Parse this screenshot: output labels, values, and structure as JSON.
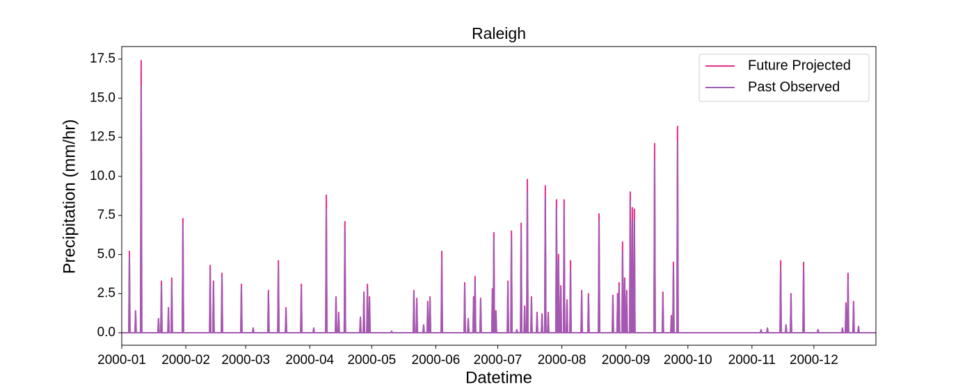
{
  "chart_data": {
    "type": "line",
    "title": "Raleigh",
    "x_label": "Datetime",
    "y_label": "Precipitation (mm/hr)",
    "xlim": [
      0,
      365
    ],
    "xticks": [
      {
        "value": 0,
        "label": "2000-01"
      },
      {
        "value": 31,
        "label": "2000-02"
      },
      {
        "value": 60,
        "label": "2000-03"
      },
      {
        "value": 91,
        "label": "2000-04"
      },
      {
        "value": 121,
        "label": "2000-05"
      },
      {
        "value": 152,
        "label": "2000-06"
      },
      {
        "value": 182,
        "label": "2000-07"
      },
      {
        "value": 213,
        "label": "2000-08"
      },
      {
        "value": 244,
        "label": "2000-09"
      },
      {
        "value": 274,
        "label": "2000-10"
      },
      {
        "value": 305,
        "label": "2000-11"
      },
      {
        "value": 335,
        "label": "2000-12"
      }
    ],
    "ylim": [
      -0.8,
      18.3
    ],
    "yticks": [
      {
        "value": 0,
        "label": "0.0"
      },
      2.5,
      {
        "value": 5,
        "label": "5.0"
      },
      {
        "value": 7.5,
        "label": "7.5"
      },
      {
        "value": 10,
        "label": "10.0"
      },
      12.5,
      {
        "value": 15,
        "label": "15.0"
      },
      17.5
    ],
    "legend": "upper right",
    "x": [
      0,
      3.4,
      3.7,
      4.0,
      6.4,
      6.7,
      7.0,
      9.1,
      9.4,
      9.7,
      17.5,
      17.8,
      18.1,
      18.9,
      19.2,
      19.5,
      22.3,
      22.6,
      22.9,
      23.9,
      24.2,
      24.5,
      29.3,
      29.6,
      29.9,
      42.5,
      42.8,
      43.1,
      44.1,
      44.4,
      44.7,
      48.2,
      48.5,
      48.8,
      57.6,
      57.9,
      58.2,
      63.3,
      63.6,
      63.9,
      70.7,
      71,
      71.3,
      75.5,
      75.8,
      76.1,
      79.2,
      79.5,
      79.8,
      86.6,
      86.9,
      87.2,
      92.6,
      92.9,
      93.2,
      98.7,
      99,
      99.3,
      103.4,
      103.7,
      104,
      104.7,
      105,
      105.3,
      107.7,
      108,
      108.3,
      115.2,
      115.5,
      115.8,
      116.9,
      117.2,
      117.5,
      118.6,
      118.9,
      119.2,
      119.6,
      119.9,
      120.2,
      130.3,
      130.6,
      130.9,
      141.1,
      141.4,
      141.7,
      142.5,
      142.8,
      143.1,
      145.8,
      146.1,
      146.4,
      147.8,
      148.1,
      148.4,
      148.9,
      149.2,
      149.5,
      154.6,
      154.9,
      155.2,
      165.7,
      166,
      166.3,
      167.4,
      167.7,
      168,
      170,
      170.3,
      170.6,
      170.7,
      171,
      171.3,
      173.4,
      173.7,
      174,
      179.1,
      179.4,
      179.7,
      179.8,
      180.1,
      180.4,
      180.8,
      181.1,
      181.4,
      186.6,
      186.9,
      187.2,
      188.3,
      188.6,
      188.9,
      190.9,
      191.2,
      191.5,
      193,
      193.3,
      193.6,
      194.7,
      195,
      195.3,
      196,
      196.3,
      196.6,
      198,
      198.3,
      198.6,
      200.7,
      201,
      201.3,
      203.1,
      203.4,
      203.7,
      204.7,
      205,
      205.3,
      206.1,
      206.4,
      206.7,
      210.1,
      210.4,
      210.7,
      211.1,
      211.4,
      211.7,
      212.2,
      212.5,
      212.8,
      213.8,
      214.1,
      214.4,
      215.2,
      215.5,
      215.8,
      216.9,
      217.2,
      217.5,
      222.3,
      222.6,
      222.9,
      225.6,
      225.9,
      226.2,
      230.7,
      231,
      231.3,
      237.4,
      237.7,
      238,
      239.7,
      240,
      240.3,
      240.4,
      240.7,
      241,
      242.1,
      242.4,
      242.7,
      243.1,
      243.4,
      243.7,
      244.1,
      244.4,
      244.7,
      245.8,
      246.1,
      246.4,
      246.8,
      247.1,
      247.4,
      247.8,
      248.1,
      248.4,
      257.6,
      257.9,
      258.2,
      261.6,
      261.9,
      262.2,
      265.7,
      266,
      266.3,
      266.7,
      267,
      267.3,
      268.7,
      269,
      269.3,
      309.1,
      309.4,
      309.7,
      312.2,
      312.5,
      312.8,
      318.6,
      318.9,
      319.2,
      321.2,
      321.5,
      321.8,
      323.6,
      323.9,
      324.2,
      329.7,
      330,
      330.3,
      336.7,
      337,
      337.3,
      348.5,
      348.8,
      349.1,
      350.2,
      350.5,
      350.8,
      351.2,
      351.5,
      351.8,
      353.9,
      354.2,
      354.5,
      356.3,
      356.6,
      356.9,
      365
    ],
    "series": [
      {
        "name": "Future Projected",
        "color": "#e7298a",
        "values": [
          0,
          0,
          5.2,
          0,
          0,
          1.4,
          0,
          0,
          17.4,
          0,
          0,
          0.9,
          0,
          0,
          3.3,
          0,
          0,
          1.6,
          0,
          0,
          3.5,
          0,
          0,
          7.3,
          0,
          0,
          4.3,
          0,
          0,
          3.3,
          0,
          0,
          3.8,
          0,
          0,
          3.1,
          0,
          0,
          0.3,
          0,
          0,
          2.7,
          0,
          0,
          4.6,
          0,
          0,
          1.6,
          0,
          0,
          3.1,
          0,
          0,
          0.3,
          0,
          0,
          8.8,
          0,
          0,
          2.3,
          0,
          0,
          1.3,
          0,
          0,
          7.1,
          0,
          0,
          1.0,
          0,
          0,
          2.6,
          0,
          0,
          3.1,
          0,
          0,
          2.3,
          0,
          0,
          0.1,
          0,
          0,
          2.7,
          0,
          0,
          2.2,
          0,
          0,
          0.5,
          0,
          0,
          2.0,
          0,
          0,
          2.3,
          0,
          0,
          5.2,
          0,
          0,
          3.2,
          0,
          0,
          0.9,
          0,
          0,
          2.3,
          0,
          0,
          3.6,
          0,
          0,
          2.2,
          0,
          0,
          2.8,
          0,
          0,
          6.4,
          0,
          0,
          1.4,
          0,
          0,
          3.3,
          0,
          0,
          6.5,
          0,
          0,
          0.2,
          0,
          0,
          7.0,
          0,
          0,
          1.7,
          0,
          0,
          9.8,
          0,
          0,
          2.3,
          0,
          0,
          1.3,
          0,
          0,
          1.2,
          0,
          0,
          9.4,
          0,
          0,
          1.3,
          0,
          0,
          8.5,
          0,
          0,
          5.0,
          0,
          0,
          3.0,
          0,
          0,
          8.5,
          0,
          0,
          2.1,
          0,
          0,
          4.6,
          0,
          0,
          2.7,
          0,
          0,
          2.5,
          0,
          0,
          7.6,
          0,
          0,
          2.4,
          0,
          0,
          2.5,
          0,
          0,
          3.2,
          0,
          0,
          5.8,
          0,
          0,
          3.5,
          0,
          0,
          2.7,
          0,
          0,
          9.0,
          0,
          0,
          8.0,
          0,
          0,
          7.9,
          0,
          0,
          12.1,
          0,
          0,
          2.6,
          0,
          0,
          1.1,
          0,
          0,
          4.5,
          0,
          0,
          13.2,
          0,
          0,
          0.2,
          0,
          0,
          0.3,
          0,
          0,
          4.6,
          0,
          0,
          0.5,
          0,
          0,
          2.5,
          0,
          0,
          4.5,
          0,
          0,
          0.2,
          0,
          0,
          0.3,
          0,
          0,
          1.9,
          0,
          0,
          3.8,
          0,
          0,
          2.0,
          0,
          0,
          0.4,
          0,
          0
        ]
      },
      {
        "name": "Past Observed",
        "color": "#9b5db5",
        "values": [
          0,
          0,
          4.8,
          0,
          0,
          1.4,
          0,
          0,
          15.8,
          0,
          0,
          0.9,
          0,
          0,
          3.0,
          0,
          0,
          1.6,
          0,
          0,
          3.2,
          0,
          0,
          6.9,
          0,
          0,
          4.0,
          0,
          0,
          3.1,
          0,
          0,
          3.6,
          0,
          0,
          2.9,
          0,
          0,
          0.3,
          0,
          0,
          2.6,
          0,
          0,
          4.3,
          0,
          0,
          1.5,
          0,
          0,
          2.9,
          0,
          0,
          0.3,
          0,
          0,
          7.9,
          0,
          0,
          2.2,
          0,
          0,
          1.2,
          0,
          0,
          6.7,
          0,
          0,
          1.0,
          0,
          0,
          2.5,
          0,
          0,
          2.8,
          0,
          0,
          2.2,
          0,
          0,
          0.1,
          0,
          0,
          2.6,
          0,
          0,
          2.1,
          0,
          0,
          0.5,
          0,
          0,
          1.9,
          0,
          0,
          2.2,
          0,
          0,
          4.7,
          0,
          0,
          3.0,
          0,
          0,
          0.9,
          0,
          0,
          2.2,
          0,
          0,
          3.4,
          0,
          0,
          2.1,
          0,
          0,
          2.7,
          0,
          0,
          6.0,
          0,
          0,
          1.3,
          0,
          0,
          3.1,
          0,
          0,
          6.1,
          0,
          0,
          0.2,
          0,
          0,
          6.6,
          0,
          0,
          1.6,
          0,
          0,
          9.0,
          0,
          0,
          2.2,
          0,
          0,
          1.2,
          0,
          0,
          1.1,
          0,
          0,
          8.7,
          0,
          0,
          1.2,
          0,
          0,
          8.0,
          0,
          0,
          4.6,
          0,
          0,
          2.9,
          0,
          0,
          8.0,
          0,
          0,
          2.0,
          0,
          0,
          4.0,
          0,
          0,
          2.6,
          0,
          0,
          2.4,
          0,
          0,
          7.1,
          0,
          0,
          2.3,
          0,
          0,
          2.4,
          0,
          0,
          3.0,
          0,
          0,
          5.2,
          0,
          0,
          3.3,
          0,
          0,
          2.6,
          0,
          0,
          8.4,
          0,
          0,
          7.2,
          0,
          0,
          7.2,
          0,
          0,
          11.0,
          0,
          0,
          2.5,
          0,
          0,
          1.0,
          0,
          0,
          4.2,
          0,
          0,
          12.2,
          0,
          0,
          0.2,
          0,
          0,
          0.3,
          0,
          0,
          4.2,
          0,
          0,
          0.5,
          0,
          0,
          2.4,
          0,
          0,
          4.2,
          0,
          0,
          0.2,
          0,
          0,
          0.3,
          0,
          0,
          1.8,
          0,
          0,
          3.4,
          0,
          0,
          1.9,
          0,
          0,
          0.4,
          0,
          0
        ]
      }
    ]
  }
}
